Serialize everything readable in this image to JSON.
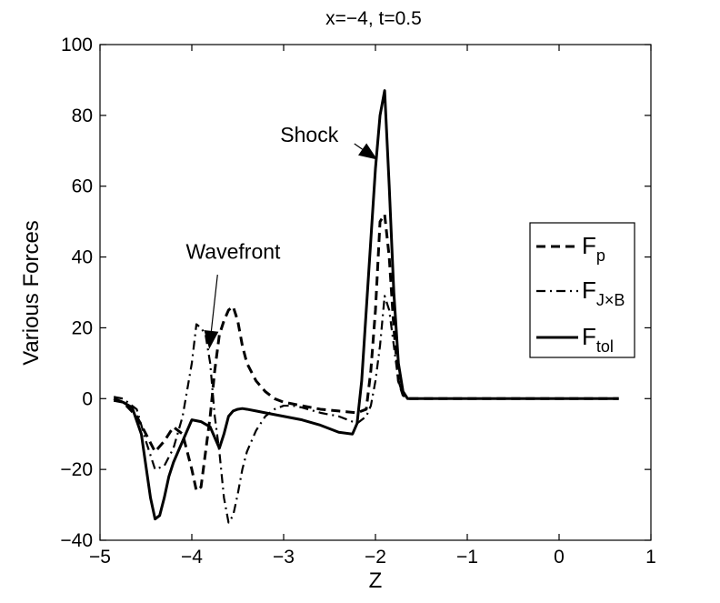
{
  "chart_data": {
    "type": "line",
    "title": "x=−4, t=0.5",
    "xlabel": "Z",
    "ylabel": "Various Forces",
    "xlim": [
      -5,
      1
    ],
    "ylim": [
      -40,
      100
    ],
    "xticks": [
      -5,
      -4,
      -3,
      -2,
      -1,
      0,
      1
    ],
    "xtick_labels": [
      "−5",
      "−4",
      "−3",
      "−2",
      "−1",
      "0",
      "1"
    ],
    "yticks": [
      -40,
      -20,
      0,
      20,
      40,
      60,
      80,
      100
    ],
    "ytick_labels": [
      "−40",
      "−20",
      "0",
      "20",
      "40",
      "60",
      "80",
      "100"
    ],
    "grid": false,
    "legend_position": "right",
    "series": [
      {
        "name": "F",
        "sub": "p",
        "style": "dashed",
        "x": [
          -4.85,
          -4.75,
          -4.6,
          -4.5,
          -4.4,
          -4.3,
          -4.2,
          -4.1,
          -4.0,
          -3.95,
          -3.9,
          -3.85,
          -3.8,
          -3.75,
          -3.7,
          -3.65,
          -3.6,
          -3.55,
          -3.5,
          -3.45,
          -3.4,
          -3.3,
          -3.2,
          -3.1,
          -3.0,
          -2.9,
          -2.8,
          -2.6,
          -2.4,
          -2.2,
          -2.1,
          -2.05,
          -2.0,
          -1.95,
          -1.9,
          -1.85,
          -1.8,
          -1.75,
          -1.7,
          -1.65,
          -1.6,
          -1.4,
          -1.2,
          -1.0,
          -0.8,
          -0.6,
          -0.4,
          -0.2,
          0.0,
          0.2,
          0.4,
          0.65
        ],
        "y": [
          0,
          -1,
          -5,
          -10,
          -15,
          -12,
          -8,
          -10,
          -20,
          -26,
          -25,
          -15,
          -5,
          8,
          18,
          22,
          25,
          26,
          22,
          15,
          10,
          5,
          2,
          0,
          -1,
          -1.5,
          -2,
          -3,
          -3.5,
          -4,
          -3,
          8,
          25,
          50,
          52,
          40,
          20,
          5,
          1,
          0,
          0,
          0,
          0,
          0,
          0,
          0,
          0,
          0,
          0,
          0,
          0,
          0
        ]
      },
      {
        "name": "F",
        "sub": "J×B",
        "style": "dashdot",
        "x": [
          -4.85,
          -4.75,
          -4.6,
          -4.5,
          -4.4,
          -4.3,
          -4.2,
          -4.1,
          -4.0,
          -3.95,
          -3.9,
          -3.85,
          -3.8,
          -3.75,
          -3.7,
          -3.65,
          -3.6,
          -3.55,
          -3.5,
          -3.45,
          -3.4,
          -3.3,
          -3.2,
          -3.1,
          -3.0,
          -2.9,
          -2.8,
          -2.6,
          -2.4,
          -2.2,
          -2.1,
          -2.05,
          -2.0,
          -1.95,
          -1.9,
          -1.85,
          -1.8,
          -1.75,
          -1.7,
          -1.65,
          -1.6,
          -1.4,
          -1.2,
          -1.0,
          -0.8,
          -0.6,
          -0.4,
          -0.2,
          0.0,
          0.2,
          0.4,
          0.65
        ],
        "y": [
          0.5,
          0,
          -3,
          -12,
          -20,
          -19,
          -14,
          -5,
          10,
          21,
          20,
          18,
          10,
          -5,
          -15,
          -28,
          -35,
          -33,
          -27,
          -20,
          -15,
          -9,
          -5,
          -3,
          -2,
          -2,
          -2.5,
          -4,
          -5,
          -7,
          -5,
          -2,
          5,
          15,
          29,
          25,
          15,
          5,
          1,
          0,
          0,
          0,
          0,
          0,
          0,
          0,
          0,
          0,
          0,
          0,
          0,
          0
        ]
      },
      {
        "name": "F",
        "sub": "tol",
        "style": "solid",
        "x": [
          -4.85,
          -4.75,
          -4.65,
          -4.55,
          -4.5,
          -4.45,
          -4.4,
          -4.35,
          -4.3,
          -4.25,
          -4.2,
          -4.1,
          -4.0,
          -3.9,
          -3.8,
          -3.75,
          -3.7,
          -3.65,
          -3.6,
          -3.55,
          -3.5,
          -3.45,
          -3.4,
          -3.3,
          -3.2,
          -3.0,
          -2.8,
          -2.6,
          -2.4,
          -2.25,
          -2.2,
          -2.15,
          -2.1,
          -2.05,
          -2.0,
          -1.95,
          -1.9,
          -1.85,
          -1.8,
          -1.75,
          -1.7,
          -1.65,
          -1.6,
          -1.4,
          -1.2,
          -1.0,
          -0.8,
          -0.6,
          -0.4,
          -0.2,
          0.0,
          0.2,
          0.4,
          0.65
        ],
        "y": [
          -0.5,
          -1,
          -2.5,
          -10,
          -19,
          -28,
          -34,
          -33,
          -28,
          -22,
          -18,
          -12,
          -6,
          -6.5,
          -8,
          -11,
          -14,
          -10,
          -5,
          -3.5,
          -3,
          -2.8,
          -3,
          -3.5,
          -4,
          -5,
          -6,
          -7.5,
          -9.5,
          -10,
          -7,
          5,
          25,
          45,
          65,
          80,
          87,
          60,
          30,
          10,
          2,
          0,
          0,
          0,
          0,
          0,
          0,
          0,
          0,
          0,
          0,
          0,
          0,
          0
        ]
      }
    ],
    "annotations": [
      {
        "text": "Shock",
        "text_at": [
          -2.72,
          72.5
        ],
        "arrow_from": [
          -2.23,
          72
        ],
        "arrow_to": [
          -1.98,
          67.5
        ]
      },
      {
        "text": "Wavefront",
        "text_at": [
          -3.55,
          39.5
        ],
        "arrow_from": [
          -3.72,
          35
        ],
        "arrow_to": [
          -3.81,
          14
        ]
      }
    ]
  }
}
